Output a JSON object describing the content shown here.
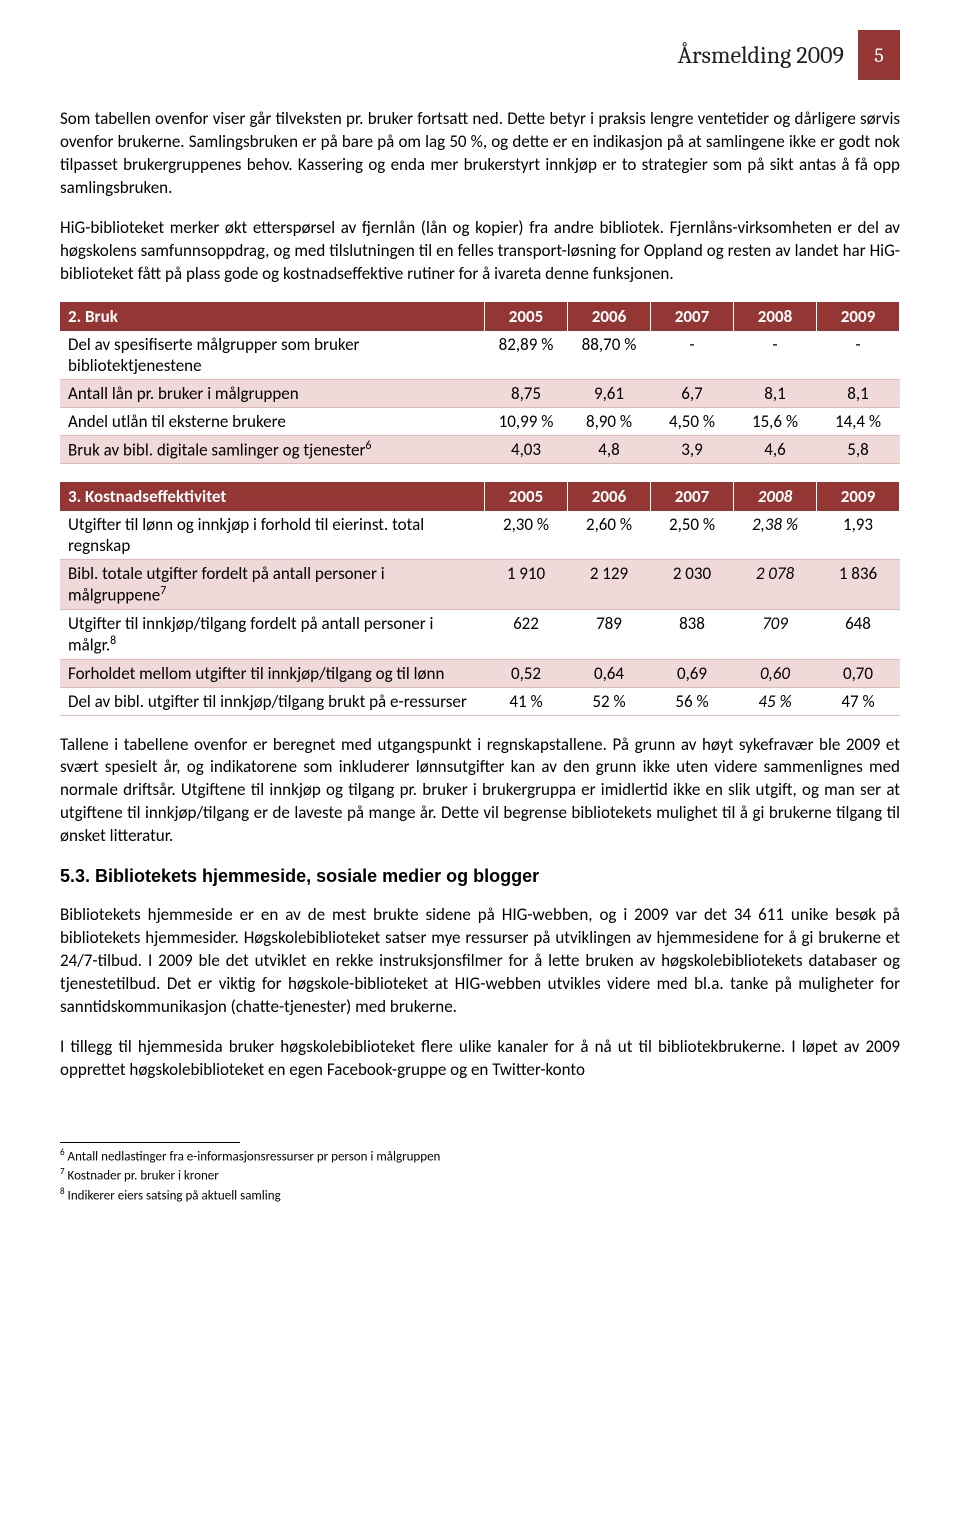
{
  "header": {
    "title": "Årsmelding 2009",
    "page_number": "5"
  },
  "paragraphs": {
    "p1": "Som tabellen ovenfor viser går tilveksten pr. bruker fortsatt ned. Dette betyr i praksis lengre ventetider og dårligere sørvis ovenfor brukerne. Samlingsbruken er på bare på om lag 50 %, og dette er en indikasjon på at samlingene ikke er godt nok tilpasset brukergruppenes behov. Kassering og enda mer brukerstyrt innkjøp er to strategier som på sikt antas å få opp samlingsbruken.",
    "p2": "HiG-biblioteket merker økt etterspørsel av fjernlån (lån og kopier) fra andre bibliotek. Fjernlåns-virksomheten er del av høgskolens samfunnsoppdrag, og med tilslutningen til en felles transport-løsning for Oppland og resten av landet har HiG-biblioteket fått på plass gode og kostnadseffektive rutiner for å ivareta denne funksjonen.",
    "p3": "Tallene i tabellene ovenfor er beregnet med utgangspunkt i regnskapstallene. På grunn av høyt sykefravær ble 2009 et svært spesielt år, og indikatorene som inkluderer lønnsutgifter kan av den grunn ikke uten videre sammenlignes med normale driftsår. Utgiftene til innkjøp og tilgang pr. bruker i brukergruppa er imidlertid ikke en slik utgift, og man ser at utgiftene til innkjøp/tilgang er de laveste på mange år. Dette vil begrense bibliotekets mulighet til å gi brukerne tilgang til ønsket litteratur.",
    "p4": "Bibliotekets hjemmeside er en av de mest brukte sidene på HIG-webben, og i 2009 var det 34 611 unike besøk på bibliotekets hjemmesider. Høgskolebiblioteket satser mye ressurser på utviklingen av hjemmesidene for å gi brukerne et 24/7-tilbud. I 2009 ble det utviklet en rekke instruksjonsfilmer for å lette bruken av høgskolebibliotekets databaser og tjenestetilbud. Det er viktig for høgskole-biblioteket at HIG-webben utvikles videre med bl.a. tanke på muligheter for sanntidskommunikasjon (chatte-tjenester) med brukerne.",
    "p5": "I tillegg til hjemmesida bruker høgskolebiblioteket flere ulike kanaler for å nå ut til bibliotekbrukerne. I løpet av 2009 opprettet høgskolebiblioteket en egen Facebook-gruppe og en Twitter-konto"
  },
  "table2": {
    "header_label": "2. Bruk",
    "years": [
      "2005",
      "2006",
      "2007",
      "2008",
      "2009"
    ],
    "r1_label": "Del av spesifiserte målgrupper som bruker bibliotektjenestene",
    "r1": [
      "82,89 %",
      "88,70 %",
      "-",
      "-",
      "-"
    ],
    "r2_label": "Antall lån pr. bruker i målgruppen",
    "r2": [
      "8,75",
      "9,61",
      "6,7",
      "8,1",
      "8,1"
    ],
    "r3_label": "Andel utlån til eksterne brukere",
    "r3": [
      "10,99 %",
      "8,90 %",
      "4,50 %",
      "15,6 %",
      "14,4 %"
    ],
    "r4_label_a": "Bruk av bibl. digitale samlinger og tjenester",
    "r4_sup": "6",
    "r4": [
      "4,03",
      "4,8",
      "3,9",
      "4,6",
      "5,8"
    ]
  },
  "table3": {
    "header_label": "3. Kostnadseffektivitet",
    "years": [
      "2005",
      "2006",
      "2007",
      "2008",
      "2009"
    ],
    "r1_label": "Utgifter til lønn og innkjøp i forhold til eierinst. total regnskap",
    "r1": [
      "2,30 %",
      "2,60 %",
      "2,50 %",
      "2,38 %",
      "1,93"
    ],
    "r2_label_a": "Bibl. totale utgifter fordelt på antall personer i målgruppene",
    "r2_sup": "7",
    "r2": [
      "1 910",
      "2 129",
      "2 030",
      "2 078",
      "1 836"
    ],
    "r3_label_a": "Utgifter til innkjøp/tilgang fordelt på antall personer i målgr.",
    "r3_sup": "8",
    "r3": [
      "622",
      "789",
      "838",
      "709",
      "648"
    ],
    "r4_label": "Forholdet mellom utgifter til innkjøp/tilgang og til lønn",
    "r4": [
      "0,52",
      "0,64",
      "0,69",
      "0,60",
      "0,70"
    ],
    "r5_label": "Del av bibl. utgifter til innkjøp/tilgang brukt på e-ressurser",
    "r5": [
      "41 %",
      "52 %",
      "56 %",
      "45 %",
      "47 %"
    ]
  },
  "section53": "5.3. Bibliotekets hjemmeside, sosiale medier og blogger",
  "footnotes": {
    "f6_num": "6",
    "f6": " Antall nedlastinger fra e-informasjonsressurser pr person i målgruppen",
    "f7_num": "7",
    "f7": " Kostnader pr. bruker i kroner",
    "f8_num": "8",
    "f8": " Indikerer eiers satsing på aktuell samling"
  },
  "styling": {
    "header_bg": "#943634",
    "row_alt_bg": "#efd9d9",
    "row_border": "#e2b8b7",
    "body_font_size_pt": 12,
    "header_font": "Cambria",
    "body_font": "Calibri"
  }
}
